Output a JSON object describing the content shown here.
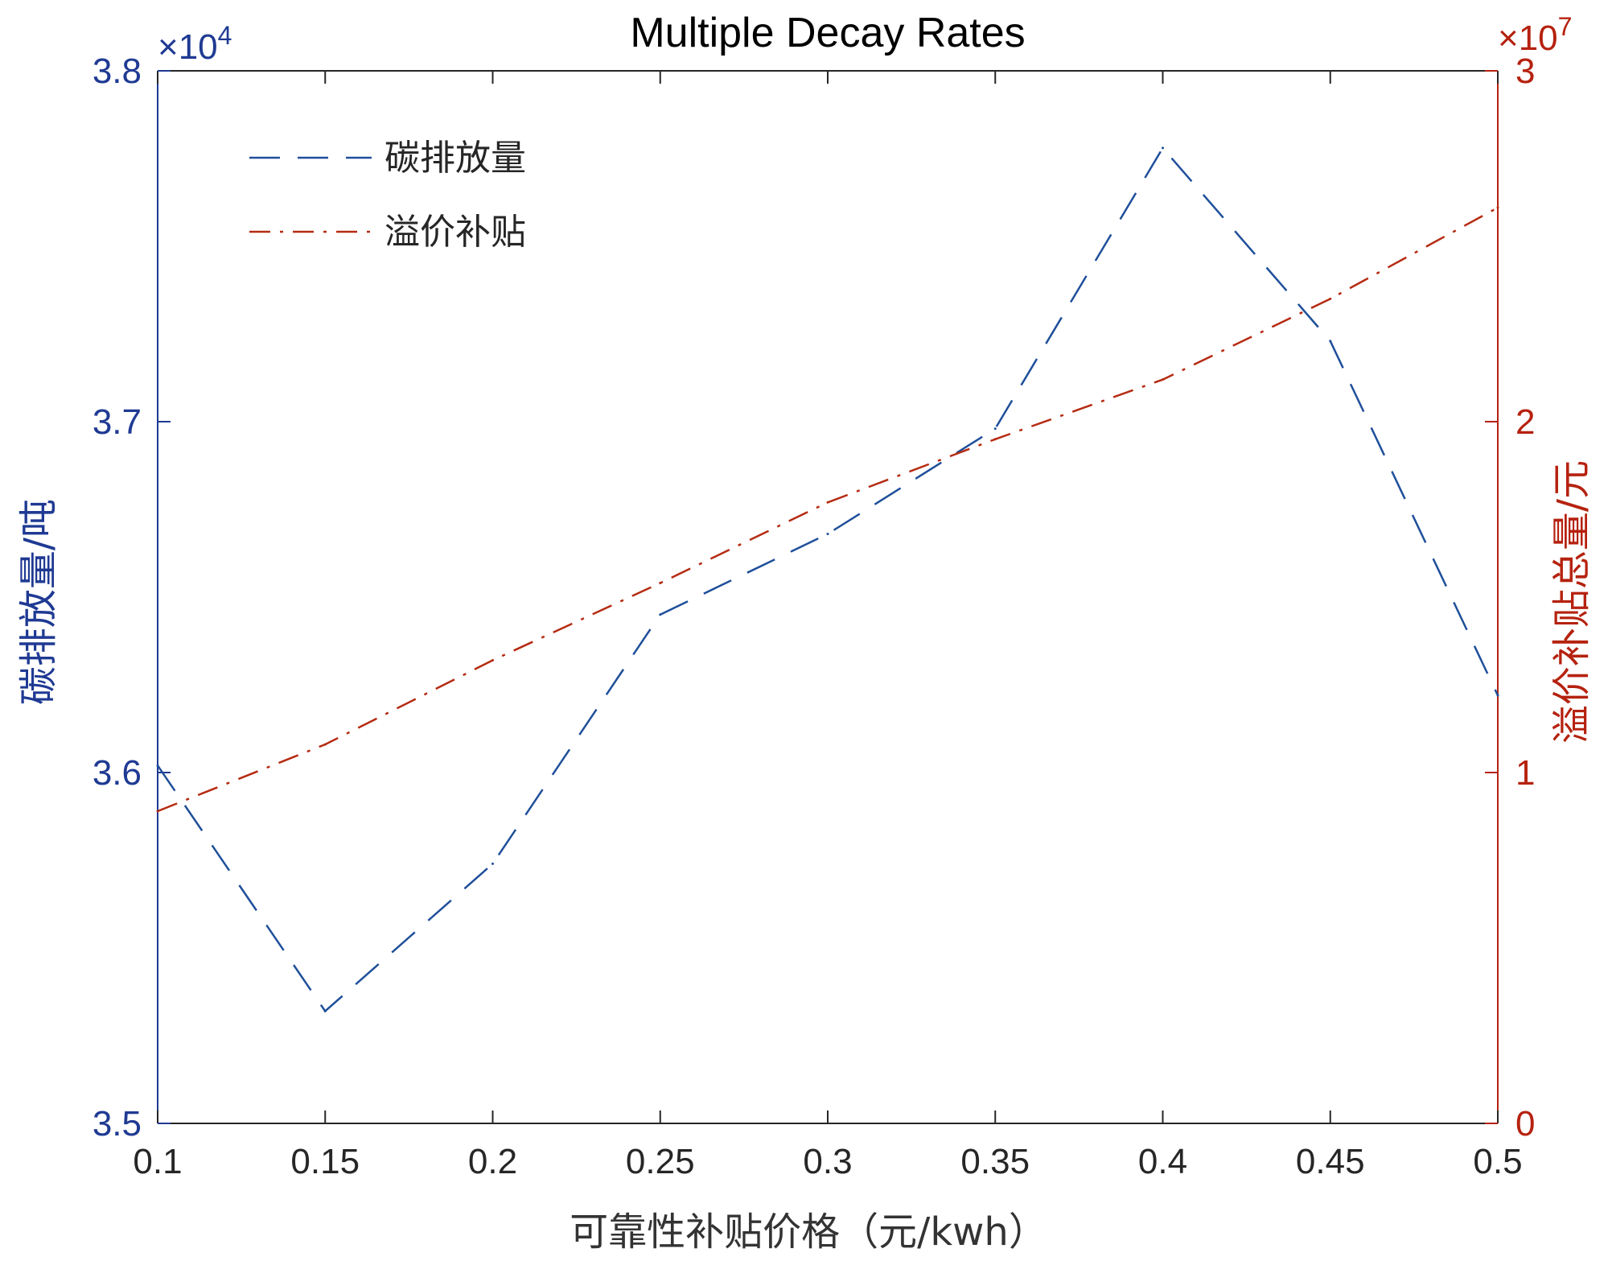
{
  "chart_data": {
    "type": "line",
    "title": "Multiple Decay Rates",
    "xlabel": "可靠性补贴价格（元/kwh）",
    "ylabel_left": "碳排放量/吨",
    "ylabel_right": "溢价补贴总量/元",
    "xlim": [
      0.1,
      0.5
    ],
    "ylim_left": [
      35000,
      38000
    ],
    "ylim_right": [
      0,
      30000000
    ],
    "x_ticks": [
      0.1,
      0.15,
      0.2,
      0.25,
      0.3,
      0.35,
      0.4,
      0.45,
      0.5
    ],
    "x_tick_labels": [
      "0.1",
      "0.15",
      "0.2",
      "0.25",
      "0.3",
      "0.35",
      "0.4",
      "0.45",
      "0.5"
    ],
    "y_left_ticks": [
      35000,
      36000,
      37000,
      38000
    ],
    "y_left_tick_labels": [
      "3.5",
      "3.6",
      "3.7",
      "3.8"
    ],
    "y_left_exponent_base": "×10",
    "y_left_exponent_power": "4",
    "y_right_ticks": [
      0,
      10000000,
      20000000,
      30000000
    ],
    "y_right_tick_labels": [
      "0",
      "1",
      "2",
      "3"
    ],
    "y_right_exponent_base": "×10",
    "y_right_exponent_power": "7",
    "grid": false,
    "legend_position": "top-left",
    "colors": {
      "left_axis": "#1f3a93",
      "right_axis": "#b5220f",
      "series_carbon": "#1f4f9a",
      "series_subsidy": "#b52b12"
    },
    "series": [
      {
        "name": "碳排放量",
        "axis": "left",
        "style": "dashed",
        "x": [
          0.1,
          0.15,
          0.2,
          0.25,
          0.3,
          0.35,
          0.4,
          0.45,
          0.5
        ],
        "values": [
          36020,
          35320,
          35740,
          36450,
          36680,
          36980,
          37780,
          37230,
          36220
        ]
      },
      {
        "name": "溢价补贴",
        "axis": "right",
        "style": "dashdot",
        "x": [
          0.1,
          0.15,
          0.2,
          0.25,
          0.3,
          0.35,
          0.4,
          0.45,
          0.5
        ],
        "values": [
          8900000,
          10800000,
          13200000,
          15400000,
          17700000,
          19500000,
          21200000,
          23500000,
          26100000
        ]
      }
    ]
  }
}
